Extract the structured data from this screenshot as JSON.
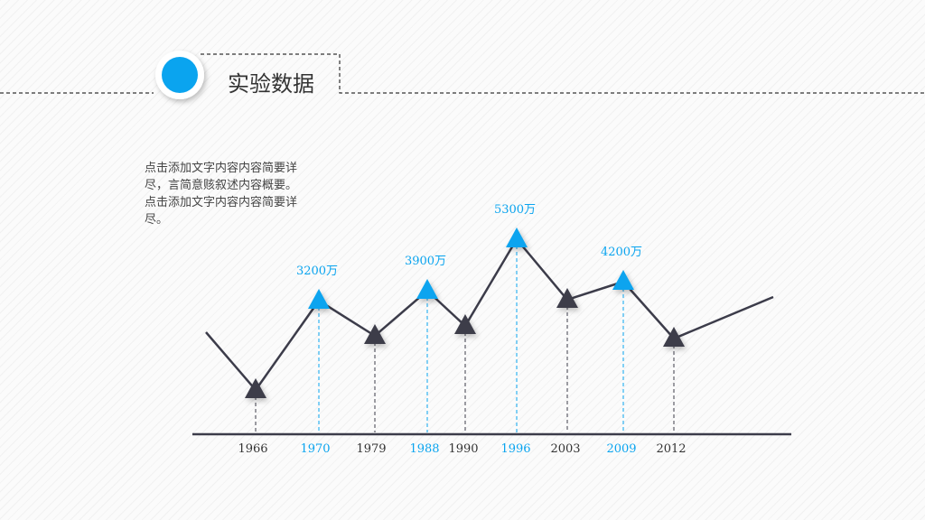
{
  "header": {
    "title": "实验数据"
  },
  "description": "点击添加文字内容内容简要详尽，言简意赅叙述内容概要。点击添加文字内容内容简要详尽。",
  "timeline": {
    "points": [
      {
        "year": "1966"
      },
      {
        "year": "1970",
        "label": "3200万"
      },
      {
        "year": "1979"
      },
      {
        "year": "1988",
        "label": "3900万"
      },
      {
        "year": "1990"
      },
      {
        "year": "1996",
        "label": "5300万"
      },
      {
        "year": "2003"
      },
      {
        "year": "2009",
        "label": "4200万"
      },
      {
        "year": "2012"
      }
    ]
  }
}
